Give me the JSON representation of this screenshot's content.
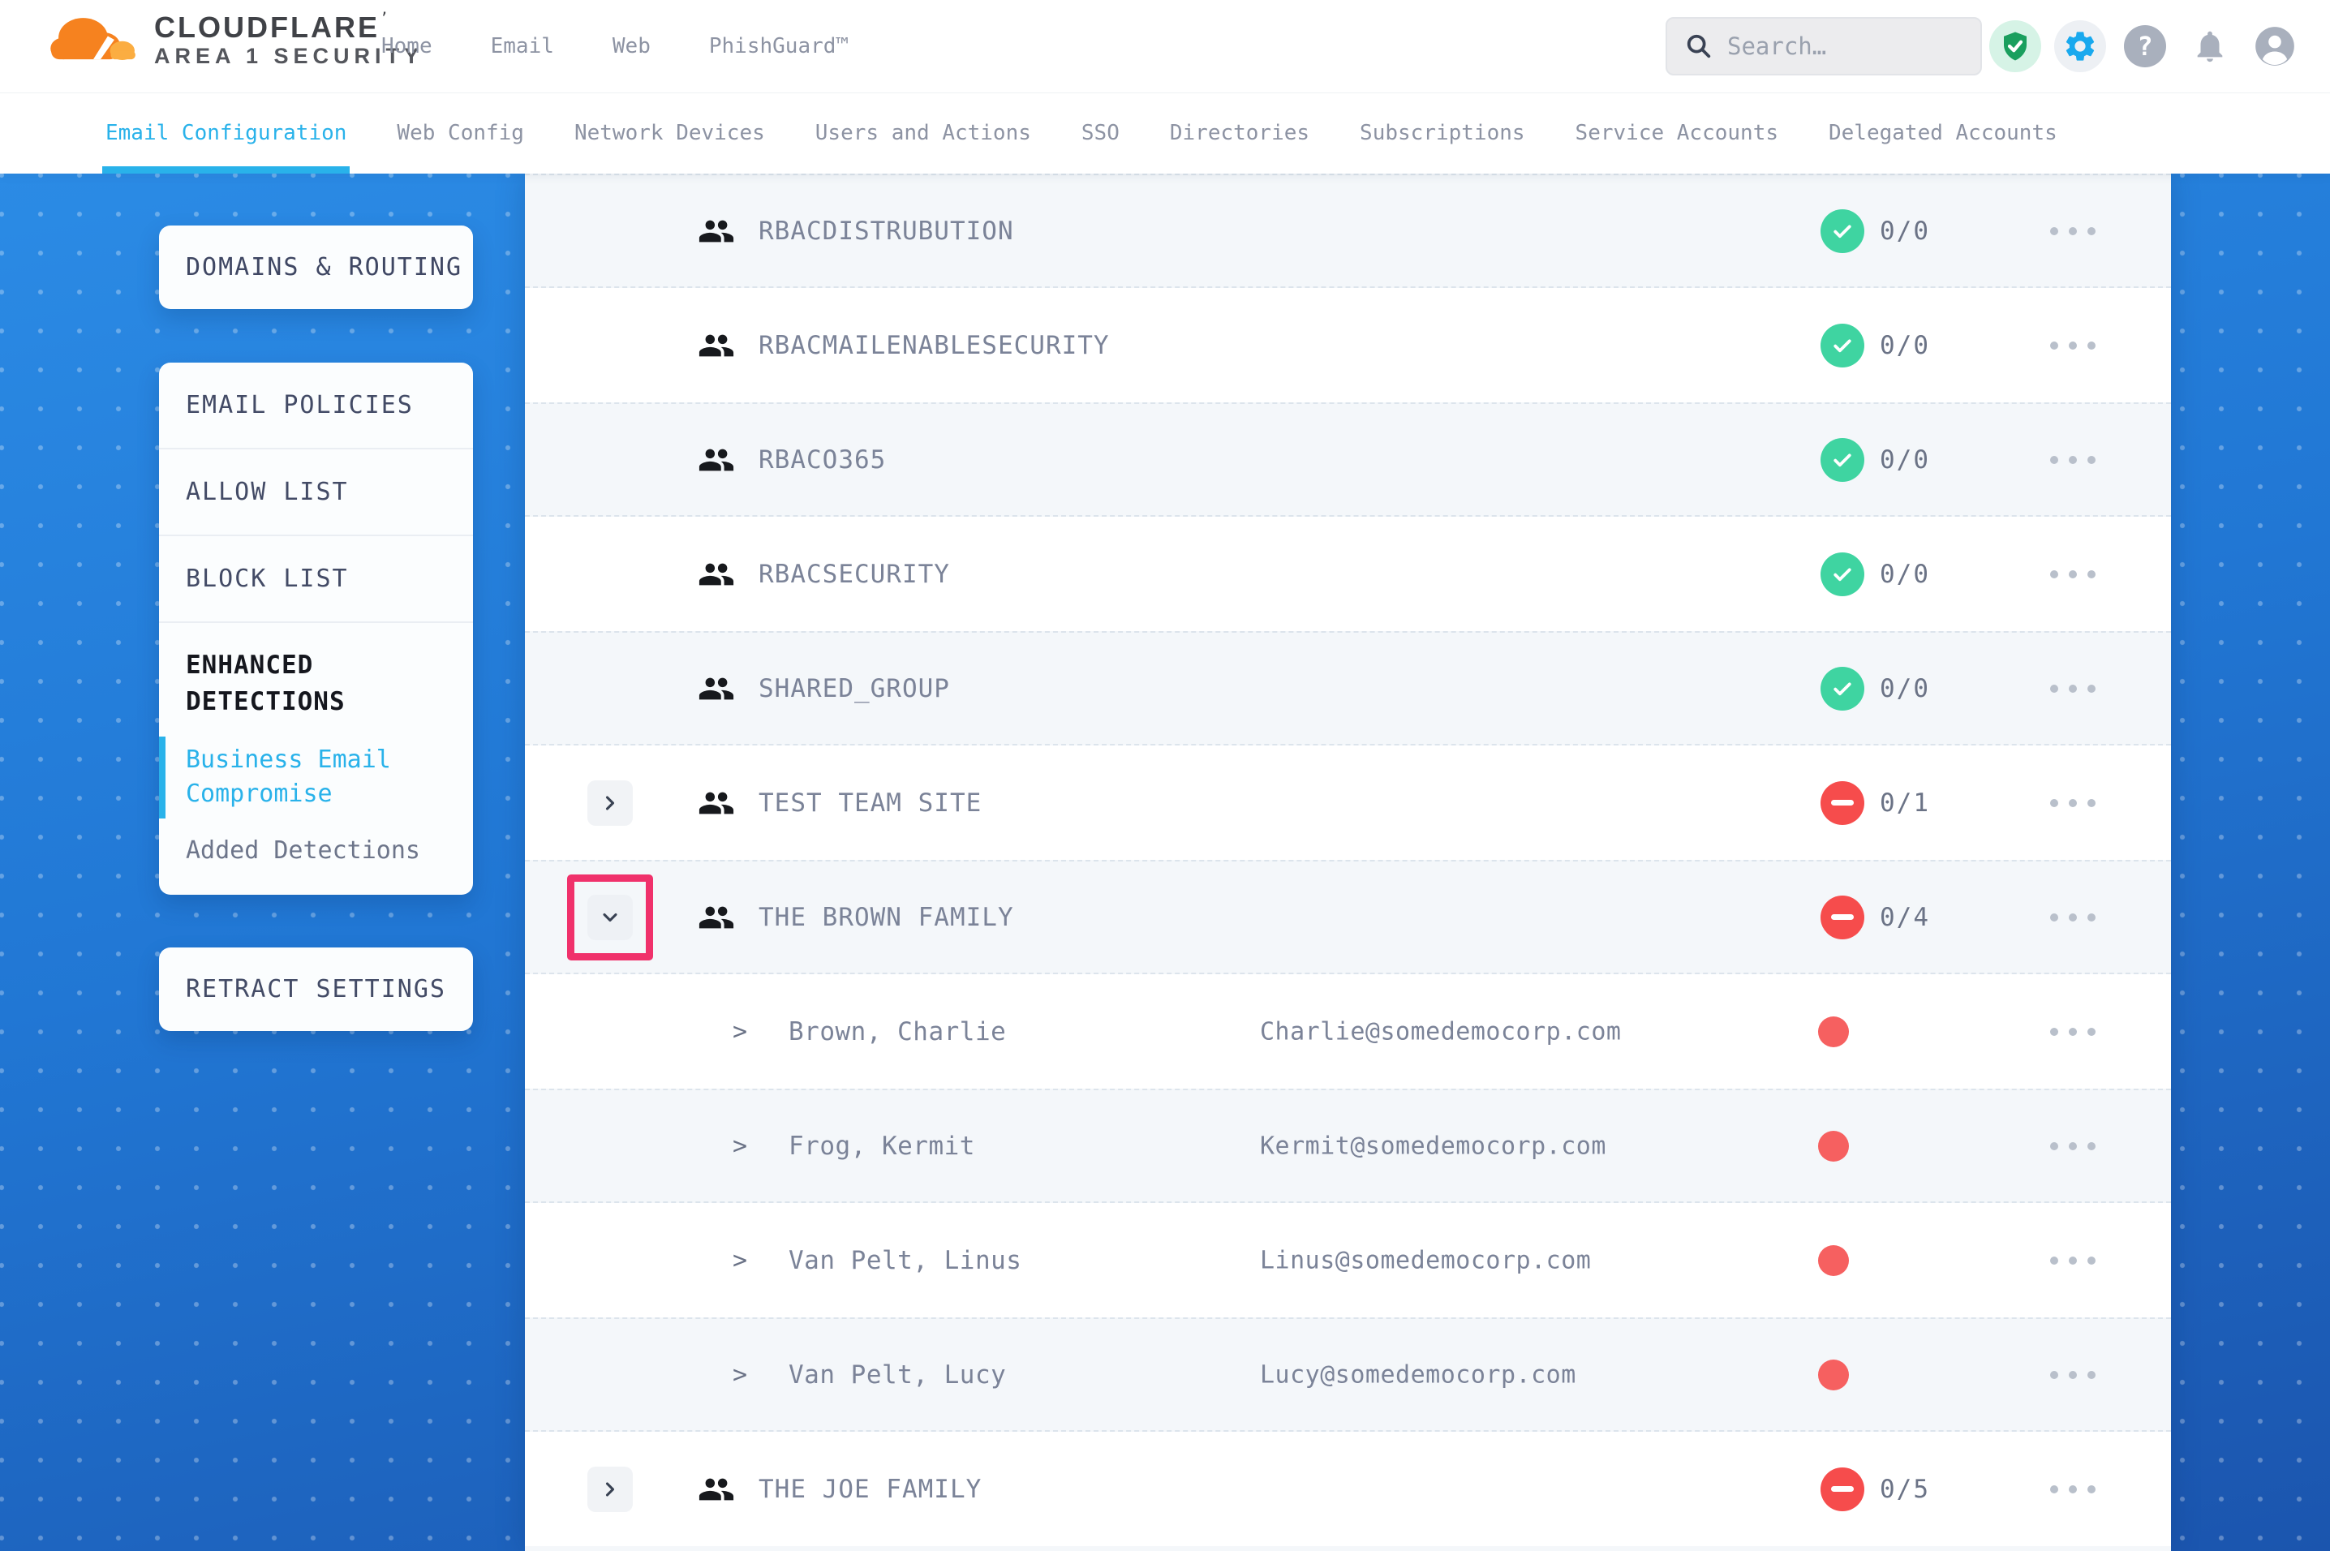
{
  "header": {
    "logo": {
      "line1": "CLOUDFLARE",
      "mark": "’",
      "line2": "AREA 1 SECURITY"
    },
    "nav": [
      "Home",
      "Email",
      "Web",
      "PhishGuard™"
    ],
    "search_placeholder": "Search…"
  },
  "tabs": {
    "items": [
      {
        "label": "Email Configuration",
        "active": true
      },
      {
        "label": "Web Config",
        "active": false
      },
      {
        "label": "Network Devices",
        "active": false
      },
      {
        "label": "Users and Actions",
        "active": false
      },
      {
        "label": "SSO",
        "active": false
      },
      {
        "label": "Directories",
        "active": false
      },
      {
        "label": "Subscriptions",
        "active": false
      },
      {
        "label": "Service Accounts",
        "active": false
      },
      {
        "label": "Delegated Accounts",
        "active": false
      }
    ]
  },
  "sidebar": {
    "domains_label": "DOMAINS & ROUTING",
    "policy_items": [
      "EMAIL POLICIES",
      "ALLOW LIST",
      "BLOCK LIST"
    ],
    "enhanced_title": "ENHANCED DETECTIONS",
    "bec_label": "Business Email Compromise",
    "added_label": "Added Detections",
    "retract_label": "RETRACT SETTINGS"
  },
  "icons": {
    "member_caret": ">"
  },
  "table": {
    "rows": [
      {
        "kind": "group",
        "name": "RBACDISTRUBUTION",
        "count": "0/0",
        "status": "ok",
        "shade": "light"
      },
      {
        "kind": "group",
        "name": "RBACMAILENABLESECURITY",
        "count": "0/0",
        "status": "ok",
        "shade": "white"
      },
      {
        "kind": "group",
        "name": "RBACO365",
        "count": "0/0",
        "status": "ok",
        "shade": "light"
      },
      {
        "kind": "group",
        "name": "RBACSECURITY",
        "count": "0/0",
        "status": "ok",
        "shade": "white"
      },
      {
        "kind": "group",
        "name": "SHARED_GROUP",
        "count": "0/0",
        "status": "ok",
        "shade": "light"
      },
      {
        "kind": "group",
        "name": "TEST TEAM SITE",
        "count": "0/1",
        "status": "blocked",
        "expand": "right",
        "shade": "white"
      },
      {
        "kind": "group",
        "name": "THE BROWN FAMILY",
        "count": "0/4",
        "status": "blocked",
        "expand": "down",
        "highlight": true,
        "shade": "light"
      },
      {
        "kind": "member",
        "name": "Brown, Charlie",
        "email": "Charlie@somedemocorp.com",
        "shade": "white"
      },
      {
        "kind": "member",
        "name": "Frog, Kermit",
        "email": "Kermit@somedemocorp.com",
        "shade": "light"
      },
      {
        "kind": "member",
        "name": "Van Pelt, Linus",
        "email": "Linus@somedemocorp.com",
        "shade": "white"
      },
      {
        "kind": "member",
        "name": "Van Pelt, Lucy",
        "email": "Lucy@somedemocorp.com",
        "shade": "light"
      },
      {
        "kind": "group",
        "name": "THE JOE FAMILY",
        "count": "0/5",
        "status": "blocked",
        "expand": "right",
        "shade": "white"
      }
    ]
  },
  "colors": {
    "accent_cyan": "#29b2ea",
    "status_ok_green": "#3fd4a1",
    "status_blocked_red": "#f64c4c",
    "member_dot_red": "#f66060",
    "highlight_pink": "#f0316b",
    "background_blue_top": "#2b8be5",
    "background_blue_bottom": "#1b55ae"
  }
}
